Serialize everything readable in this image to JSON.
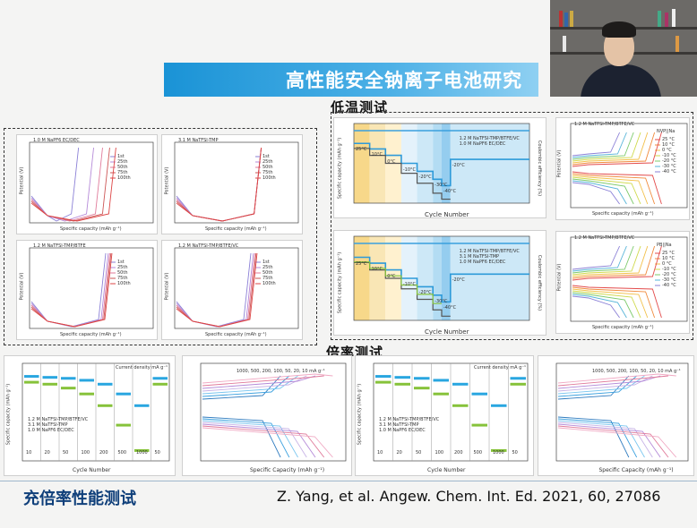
{
  "banner": {
    "title": "高性能安全钠离子电池研究"
  },
  "sections": {
    "low_temp": "低温测试",
    "rate": "倍率测试"
  },
  "footer": {
    "title": "充倍率性能测试",
    "citation": "Z. Yang, et al. Angew. Chem. Int. Ed. 2021, 60, 27086"
  },
  "left_panels": [
    {
      "title": "1.0 M NaPF6 EC/DEC",
      "legend": [
        "1st",
        "25th",
        "50th",
        "75th",
        "100th"
      ],
      "xlabel": "Specific capacity (mAh g⁻¹)",
      "ylabel": "Potential (V)"
    },
    {
      "title": "3.1 M NaTFSI-TMP",
      "legend": [
        "1st",
        "25th",
        "50th",
        "75th",
        "100th"
      ],
      "xlabel": "Specific capacity (mAh g⁻¹)",
      "ylabel": "Potential (V)"
    },
    {
      "title": "1.2 M NaTFSI-TMP/BTFE",
      "legend": [
        "1st",
        "25th",
        "50th",
        "75th",
        "100th"
      ],
      "xlabel": "Specific capacity (mAh g⁻¹)",
      "ylabel": "Potential (V)"
    },
    {
      "title": "1.2 M NaTFSI-TMP/BTFE/VC",
      "legend": [
        "1st",
        "25th",
        "50th",
        "75th",
        "100th"
      ],
      "xlabel": "Specific capacity (mAh g⁻¹)",
      "ylabel": "Potential (V)"
    }
  ],
  "lt_cycle_panels": [
    {
      "xlabel": "Cycle Number",
      "ylabel": "Specific capacity (mAh g⁻¹)",
      "y2label": "Coulombic efficiency (%)",
      "legend": [
        "1.2 M NaTFSI-TMP/BTFE/VC",
        "1.0 M NaPF6 EC/DEC"
      ],
      "temps": [
        "25°C",
        "10°C",
        "0°C",
        "-10°C",
        "-20°C",
        "-30°C",
        "-40°C",
        "-20°C"
      ]
    },
    {
      "xlabel": "Cycle Number",
      "ylabel": "Specific capacity (mAh g⁻¹)",
      "y2label": "Coulombic efficiency (%)",
      "legend": [
        "1.2 M NaTFSI-TMP/BTFE/VC",
        "3.1 M NaTFSI-TMP",
        "1.0 M NaPF6 EC/DEC"
      ],
      "temps": [
        "25°C",
        "10°C",
        "0°C",
        "-10°C",
        "-20°C",
        "-30°C",
        "-40°C",
        "-20°C"
      ]
    }
  ],
  "lt_voltage_panels": [
    {
      "title": "1.2 M NaTFSI-TMP/BTFE/VC",
      "subtitle": "NVP||Na",
      "legend": [
        "25 °C",
        "10 °C",
        "0 °C",
        "-10 °C",
        "-20 °C",
        "-30 °C",
        "-40 °C"
      ],
      "xlabel": "Specific capacity (mAh g⁻¹)",
      "ylabel": "Potential (V)"
    },
    {
      "title": "1.2 M NaTFSI-TMP/BTFE/VC",
      "subtitle": "PB||Na",
      "legend": [
        "25 °C",
        "10 °C",
        "0 °C",
        "-10 °C",
        "-20 °C",
        "-30 °C",
        "-40 °C"
      ],
      "xlabel": "Specific capacity (mAh g⁻¹)",
      "ylabel": "Potential (V)"
    }
  ],
  "rate_panels": [
    {
      "kind": "cycle",
      "label": "Current density mA g⁻¹",
      "rates": [
        "10",
        "20",
        "50",
        "100",
        "200",
        "500",
        "1000",
        "50"
      ],
      "legend": [
        "1.2 M NaTFSI-TMP/BTFE/VC",
        "3.1 M NaTFSI-TMP",
        "1.0 M NaPF6 EC/DEC"
      ],
      "xlabel": "Cycle Number",
      "ylabel": "Specific capacity (mAh g⁻¹)"
    },
    {
      "kind": "voltage",
      "label": "1000, 500, 200, 100, 50, 20, 10 mA g⁻¹",
      "xlabel": "Specific Capacity (mAh g⁻¹)",
      "ylabel": "Potential (V)"
    },
    {
      "kind": "cycle",
      "label": "Current density mA g⁻¹",
      "rates": [
        "10",
        "20",
        "50",
        "100",
        "200",
        "500",
        "1000",
        "50"
      ],
      "legend": [
        "1.2 M NaTFSI-TMP/BTFE/VC",
        "3.1 M NaTFSI-TMP",
        "1.0 M NaPF6 EC/DEC"
      ],
      "xlabel": "Cycle Number",
      "ylabel": "Specific capacity (mAh g⁻¹)"
    },
    {
      "kind": "voltage",
      "label": "1000, 500, 200, 100, 50, 20, 10 mA g⁻¹",
      "xlabel": "Specific Capacity (mAh g⁻¹)",
      "ylabel": "Potential (V)"
    }
  ],
  "colors": {
    "banner": "#1a93d6",
    "series_a": "#29a6e0",
    "series_b": "#86c23a",
    "series_c": "#6a6a6a"
  }
}
